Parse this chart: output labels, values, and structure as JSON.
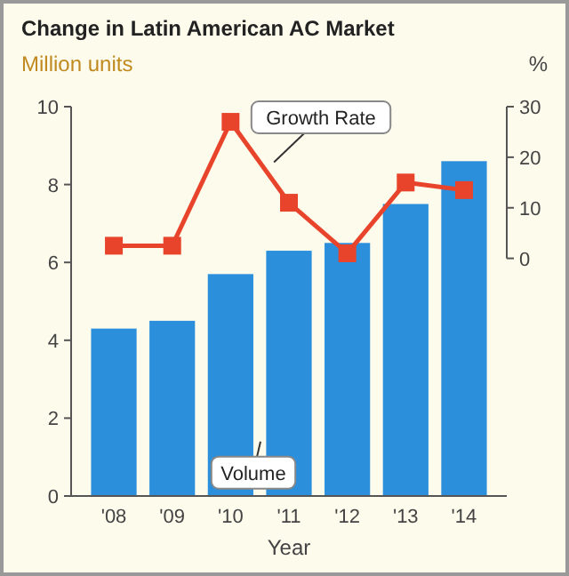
{
  "chart_data": {
    "type": "bar",
    "title": "Change in Latin American AC Market",
    "xlabel": "Year",
    "ylabel": "Million units",
    "y2label": "%",
    "categories": [
      "'08",
      "'09",
      "'10",
      "'11",
      "'12",
      "'13",
      "'14"
    ],
    "series": [
      {
        "name": "Volume",
        "color": "#2b8fdc",
        "values": [
          4.3,
          4.5,
          5.7,
          6.3,
          6.5,
          7.5,
          8.6
        ]
      },
      {
        "name": "Growth Rate",
        "type": "line",
        "axis": "y2",
        "color": "#e8442c",
        "values": [
          2.5,
          2.5,
          27,
          11,
          1,
          15,
          13.5
        ],
        "marker": "square"
      }
    ],
    "ylim": [
      0,
      10
    ],
    "yticks": [
      0,
      2,
      4,
      6,
      8,
      10
    ],
    "y2lim": [
      -47,
      30
    ],
    "y2ticks": [
      0,
      10,
      20,
      30
    ],
    "grid": false
  }
}
